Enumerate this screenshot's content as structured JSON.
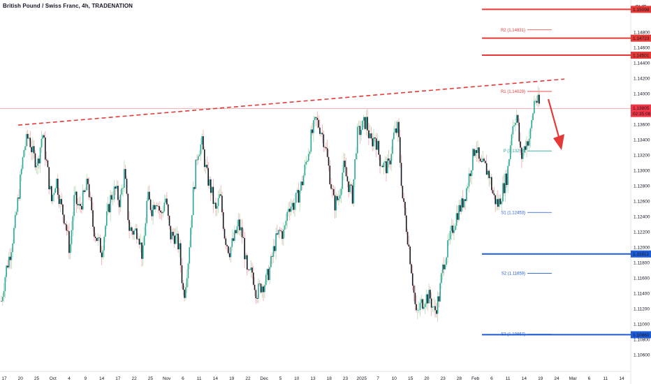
{
  "header": {
    "symbol_title": "British Pound / Swiss Franc, 4h, TRADENATION",
    "currency": "CHF"
  },
  "colors": {
    "up": "#26a69a",
    "down": "#131722",
    "up_wick": "#a5d6a7",
    "down_wick": "#ef9a9a",
    "resistance": "#e53935",
    "support": "#1e5bd6",
    "pivot": "#26a69a",
    "price_line": "#f28b8b",
    "arrow": "#e53935"
  },
  "chart_data": {
    "type": "candlestick",
    "ylim": [
      1.104,
      1.1522
    ],
    "y_ticks": [
      "1.14800",
      "1.14600",
      "1.14400",
      "1.14200",
      "1.14000",
      "1.13600",
      "1.13400",
      "1.13200",
      "1.13000",
      "1.12800",
      "1.12600",
      "1.12400",
      "1.12200",
      "1.12000",
      "1.11800",
      "1.11600",
      "1.11400",
      "1.11200",
      "1.11000",
      "1.10800",
      "1.10600"
    ],
    "x_ticks": [
      "17",
      "20",
      "25",
      "Oct",
      "4",
      "9",
      "14",
      "17",
      "22",
      "25",
      "Nov",
      "6",
      "11",
      "14",
      "19",
      "22",
      "Dec",
      "5",
      "10",
      "13",
      "18",
      "23",
      "2025",
      "7",
      "10",
      "15",
      "20",
      "23",
      "28",
      "Feb",
      "6",
      "11",
      "14",
      "19",
      "24",
      "Mar",
      "6",
      "11",
      "14"
    ],
    "last_price": {
      "value": "1.13805",
      "countdown": "02:35:08"
    },
    "price_labels": [
      {
        "value": "1.15098",
        "type": "resistance"
      },
      {
        "value": "1.14723",
        "type": "resistance"
      },
      {
        "value": "1.14501",
        "type": "resistance"
      },
      {
        "value": "1.11912",
        "type": "support"
      },
      {
        "value": "1.10860",
        "type": "support"
      }
    ],
    "pivots": [
      {
        "label": "R2 (1.14831)",
        "value": 1.14831,
        "type": "resistance"
      },
      {
        "label": "R1 (1.14029)",
        "value": 1.14029,
        "type": "resistance"
      },
      {
        "label": "P (1.13254)",
        "value": 1.13254,
        "type": "pivot"
      },
      {
        "label": "S1 (1.12453)",
        "value": 1.12453,
        "type": "support"
      },
      {
        "label": "S2 (1.11659)",
        "value": 1.11659,
        "type": "support"
      },
      {
        "label": "S3 (1.10867)",
        "value": 1.10867,
        "type": "support"
      }
    ],
    "trendline": {
      "from": 1.1359,
      "to": 1.1419
    },
    "series_anchors": [
      1.113,
      1.117,
      1.1195,
      1.123,
      1.128,
      1.133,
      1.1345,
      1.1318,
      1.131,
      1.135,
      1.1305,
      1.126,
      1.129,
      1.1255,
      1.1235,
      1.1195,
      1.1265,
      1.125,
      1.1265,
      1.1285,
      1.123,
      1.121,
      1.1195,
      1.1235,
      1.1265,
      1.1275,
      1.1258,
      1.1298,
      1.1225,
      1.122,
      1.1222,
      1.1185,
      1.1265,
      1.125,
      1.1265,
      1.124,
      1.1265,
      1.1215,
      1.1215,
      1.12,
      1.1135,
      1.1185,
      1.1265,
      1.1325,
      1.1335,
      1.1295,
      1.1275,
      1.1245,
      1.1268,
      1.1215,
      1.1195,
      1.121,
      1.123,
      1.1212,
      1.116,
      1.1168,
      1.114,
      1.115,
      1.1155,
      1.1175,
      1.1205,
      1.122,
      1.1218,
      1.1255,
      1.1255,
      1.1265,
      1.1285,
      1.1315,
      1.1345,
      1.1365,
      1.1355,
      1.1335,
      1.1295,
      1.1255,
      1.1265,
      1.1305,
      1.1285,
      1.1265,
      1.1345,
      1.1355,
      1.1365,
      1.1335,
      1.1345,
      1.1315,
      1.1305,
      1.1305,
      1.1345,
      1.1355,
      1.1265,
      1.122,
      1.117,
      1.111,
      1.1125,
      1.1135,
      1.1135,
      1.1115,
      1.1135,
      1.118,
      1.12,
      1.1225,
      1.1245,
      1.1255,
      1.1275,
      1.1305,
      1.1335,
      1.1305,
      1.1305,
      1.1295,
      1.1265,
      1.1255,
      1.1275,
      1.1295,
      1.1355,
      1.1375,
      1.1315,
      1.1335,
      1.1345,
      1.1395,
      1.1385
    ]
  }
}
